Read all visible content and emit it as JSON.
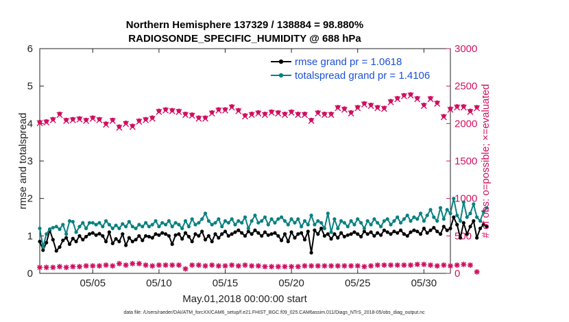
{
  "chart_data": {
    "type": "line",
    "title_line1": "Northern Hemisphere 137329 / 138884 = 98.880%",
    "title_line2": "RADIOSONDE_SPECIFIC_HUMIDITY @ 688 hPa",
    "xlabel": "May.01,2018 00:00:00 start",
    "ylabel": "rmse and totalspread",
    "ylabel_right": "# of obs: o=possible; ×=evaluated",
    "footer": "data file: /Users/raeder/DAI/ATM_forcXX/CAM6_setup/f.e21.FHIST_BGC.f09_025.CAM6assim.011/Diags_NTrS_2018-05/obs_diag_output.nc",
    "xlim": [
      1,
      32
    ],
    "ylim": [
      0,
      6
    ],
    "ylim_right": [
      0,
      3000
    ],
    "x_tick_values": [
      5,
      10,
      15,
      20,
      25,
      30
    ],
    "x_tick_labels": [
      "05/05",
      "05/10",
      "05/15",
      "05/20",
      "05/25",
      "05/30"
    ],
    "y_ticks": [
      "0",
      "1",
      "2",
      "3",
      "4",
      "5",
      "6"
    ],
    "y_ticks_right": [
      "0",
      "500",
      "1000",
      "1500",
      "2000",
      "2500",
      "3000"
    ],
    "colors": {
      "rmse": "#000000",
      "spread": "#0a8080",
      "obs": "#d01060",
      "legend_text": "#1a4fd6"
    },
    "series": [
      {
        "name": "rmse grand pr = 1.0618",
        "axis": "left",
        "x0": 1.0,
        "dx": 0.25,
        "values": [
          0.85,
          0.62,
          0.82,
          1.15,
          0.9,
          0.6,
          0.7,
          0.88,
          0.95,
          0.78,
          0.93,
          0.85,
          1.0,
          0.9,
          0.98,
          1.05,
          1.08,
          1.02,
          1.06,
          1.0,
          0.85,
          1.1,
          0.8,
          0.92,
          0.85,
          1.05,
          0.75,
          0.95,
          0.85,
          0.9,
          1.0,
          0.88,
          1.0,
          0.98,
          0.95,
          1.05,
          1.02,
          1.08,
          1.05,
          1.0,
          0.78,
          1.02,
          1.05,
          0.92,
          1.08,
          0.98,
          0.85,
          1.05,
          1.0,
          1.12,
          0.9,
          1.0,
          0.85,
          1.05,
          0.95,
          1.05,
          1.12,
          1.0,
          1.05,
          1.1,
          1.15,
          1.08,
          1.0,
          1.12,
          1.05,
          1.15,
          1.08,
          1.0,
          1.1,
          1.02,
          1.05,
          1.08,
          1.0,
          0.88,
          1.05,
          0.85,
          1.1,
          0.95,
          1.05,
          1.08,
          0.9,
          1.12,
          0.55,
          1.15,
          1.05,
          1.2,
          1.0,
          1.05,
          0.92,
          1.05,
          0.95,
          1.08,
          0.98,
          1.02,
          1.05,
          1.1,
          1.05,
          0.98,
          1.12,
          1.05,
          1.1,
          1.0,
          1.08,
          1.02,
          1.15,
          1.1,
          1.05,
          1.12,
          1.08,
          1.15,
          1.05,
          1.0,
          1.1,
          1.15,
          1.12,
          1.05,
          1.2,
          1.08,
          1.15,
          1.22,
          1.12,
          1.05,
          1.25,
          1.15,
          1.2,
          1.5,
          1.3,
          0.95,
          1.35,
          1.05,
          1.25,
          1.4,
          0.95,
          1.2,
          1.3,
          1.25
        ]
      },
      {
        "name": "totalspread grand pr = 1.4106",
        "axis": "left",
        "x0": 1.0,
        "dx": 0.25,
        "values": [
          1.2,
          0.7,
          1.05,
          1.18,
          1.22,
          1.25,
          1.18,
          1.3,
          1.05,
          1.4,
          1.38,
          1.1,
          1.25,
          1.35,
          1.2,
          1.35,
          1.35,
          1.3,
          1.35,
          1.25,
          1.4,
          1.3,
          1.2,
          1.28,
          1.2,
          1.32,
          1.25,
          1.38,
          1.25,
          1.2,
          1.3,
          1.25,
          1.35,
          1.25,
          1.3,
          1.4,
          1.25,
          1.35,
          1.3,
          1.4,
          1.25,
          1.35,
          1.3,
          1.2,
          1.4,
          1.25,
          1.45,
          1.3,
          1.35,
          1.45,
          1.6,
          1.4,
          1.3,
          1.35,
          1.45,
          1.25,
          1.4,
          1.35,
          1.45,
          1.3,
          1.4,
          1.35,
          1.5,
          1.2,
          1.4,
          1.55,
          1.35,
          1.4,
          1.5,
          1.3,
          1.45,
          1.35,
          1.45,
          1.5,
          1.4,
          1.3,
          1.45,
          1.35,
          1.45,
          1.25,
          1.4,
          1.3,
          1.55,
          1.3,
          1.4,
          1.35,
          1.2,
          1.6,
          1.1,
          1.45,
          1.2,
          1.4,
          1.35,
          1.25,
          1.4,
          1.3,
          1.45,
          1.35,
          1.2,
          1.4,
          1.3,
          1.45,
          1.35,
          1.25,
          1.4,
          1.45,
          1.3,
          1.4,
          1.5,
          1.35,
          1.45,
          1.55,
          1.4,
          1.5,
          1.45,
          1.6,
          1.4,
          1.55,
          1.7,
          1.5,
          1.4,
          1.75,
          1.45,
          1.7,
          1.6,
          2.0,
          1.55,
          1.4,
          1.9,
          1.5,
          1.6,
          1.85,
          1.5,
          1.4,
          1.65,
          1.75
        ]
      },
      {
        "name": "obs possible",
        "axis": "right",
        "marker": "o",
        "x0": 1.0,
        "dx": 0.5,
        "values": [
          2020,
          2030,
          2060,
          2130,
          2050,
          2060,
          2070,
          2050,
          2080,
          2060,
          2000,
          2050,
          1960,
          2010,
          1970,
          2040,
          2060,
          2080,
          2170,
          2190,
          2180,
          2170,
          2130,
          2120,
          2080,
          2080,
          2150,
          2190,
          2190,
          2230,
          2180,
          2110,
          2130,
          2150,
          2130,
          2160,
          2150,
          2130,
          2160,
          2130,
          2130,
          2050,
          2150,
          2130,
          2130,
          2220,
          2200,
          2150,
          2220,
          2270,
          2250,
          2220,
          2210,
          2300,
          2340,
          2380,
          2390,
          2340,
          2250,
          2340,
          2280,
          2100,
          2200,
          2230,
          2230,
          2170,
          2220
        ]
      },
      {
        "name": "obs evaluated",
        "axis": "right",
        "marker": "x",
        "x0": 1.0,
        "dx": 0.5,
        "values": [
          2005,
          2015,
          2045,
          2115,
          2035,
          2045,
          2055,
          2035,
          2065,
          2045,
          1985,
          2035,
          1945,
          1995,
          1955,
          2025,
          2045,
          2065,
          2155,
          2175,
          2165,
          2155,
          2115,
          2105,
          2065,
          2065,
          2135,
          2175,
          2175,
          2215,
          2165,
          2095,
          2115,
          2135,
          2115,
          2145,
          2135,
          2115,
          2145,
          2115,
          2115,
          2035,
          2135,
          2115,
          2115,
          2205,
          2185,
          2135,
          2205,
          2255,
          2235,
          2205,
          2195,
          2285,
          2325,
          2365,
          2375,
          2325,
          2235,
          2325,
          2265,
          2085,
          2185,
          2215,
          2215,
          2155,
          2205
        ]
      },
      {
        "name": "obs used",
        "axis": "right",
        "marker": "*",
        "x0": 1.0,
        "dx": 0.5,
        "values": [
          80,
          80,
          80,
          90,
          80,
          90,
          90,
          100,
          100,
          100,
          110,
          100,
          130,
          110,
          130,
          130,
          110,
          100,
          110,
          110,
          110,
          110,
          60,
          110,
          110,
          100,
          110,
          100,
          100,
          110,
          100,
          110,
          100,
          100,
          90,
          90,
          90,
          90,
          90,
          90,
          100,
          100,
          100,
          100,
          100,
          100,
          100,
          100,
          100,
          90,
          100,
          110,
          110,
          110,
          110,
          110,
          110,
          120,
          120,
          110,
          100,
          110,
          100,
          110,
          120,
          110,
          20
        ]
      }
    ]
  },
  "legend": {
    "rmse_label": "rmse grand pr = 1.0618",
    "spread_label": "totalspread grand pr = 1.4106"
  }
}
